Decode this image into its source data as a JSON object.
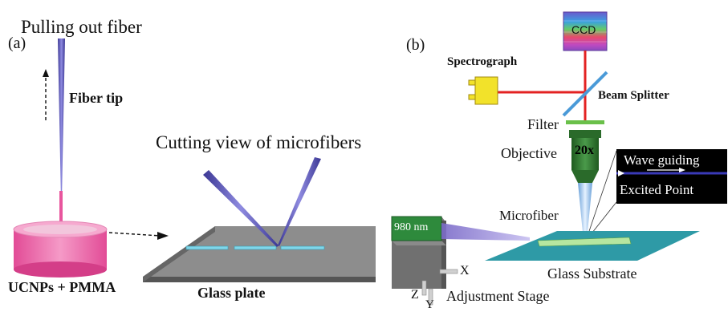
{
  "panel_a": {
    "label": "(a)",
    "title_pull": "Pulling out fiber",
    "fiber_tip": "Fiber tip",
    "cutting_view": "Cutting view of microfibers",
    "ucnps_pmma": "UCNPs + PMMA",
    "glass_plate": "Glass plate"
  },
  "panel_b": {
    "label": "(b)",
    "ccd": "CCD",
    "spectrograph": "Spectrograph",
    "beam_splitter": "Beam Splitter",
    "filter": "Filter",
    "objective": "Objective",
    "magnification": "20x",
    "wave_guiding": "Wave guiding",
    "excited_point": "Excited Point",
    "microfiber": "Microfiber",
    "laser": "980 nm",
    "glass_substrate": "Glass Substrate",
    "axis_x": "X",
    "axis_y": "Y",
    "axis_z": "Z",
    "adjustment_stage": "Adjustment Stage"
  },
  "colors": {
    "fiber": "#5a55b8",
    "pmma": "#e8559d",
    "glass_plate": "#8a8a8a",
    "substrate": "#2e9aa6",
    "beam": "#e32222",
    "objective": "#2f7a2f",
    "spectrograph": "#f2e22a",
    "laser_box": "#2e8a3c"
  }
}
